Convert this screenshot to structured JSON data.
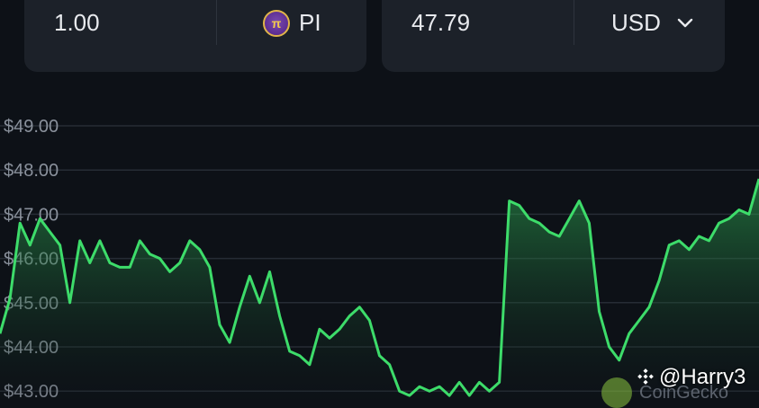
{
  "converter": {
    "from_amount": "1.00",
    "from_token": "PI",
    "to_amount": "47.79",
    "to_currency": "USD"
  },
  "watermark": {
    "author": "@Harry3",
    "source": "CoinGecko"
  },
  "colors": {
    "background": "#0d1117",
    "card": "#1c2129",
    "line": "#3ddc6a"
  },
  "chart_data": {
    "type": "area",
    "title": "",
    "xlabel": "",
    "ylabel": "",
    "ylim": [
      42.9,
      49.4
    ],
    "y_ticks": [
      "$49.00",
      "$48.00",
      "$47.00",
      "$46.00",
      "$45.00",
      "$44.00",
      "$43.00"
    ],
    "grid": true,
    "series": [
      {
        "values": [
          44.3,
          45.1,
          46.8,
          46.3,
          46.9,
          46.6,
          46.3,
          45.0,
          46.4,
          45.9,
          46.4,
          45.9,
          45.8,
          45.8,
          46.4,
          46.1,
          46.0,
          45.7,
          45.9,
          46.4,
          46.2,
          45.8,
          44.5,
          44.1,
          44.9,
          45.6,
          45.0,
          45.7,
          44.7,
          43.9,
          43.8,
          43.6,
          44.4,
          44.2,
          44.4,
          44.7,
          44.9,
          44.6,
          43.8,
          43.6,
          43.0,
          42.9,
          43.1,
          43.0,
          43.1,
          42.9,
          43.2,
          42.9,
          43.2,
          43.0,
          43.2,
          47.3,
          47.2,
          46.9,
          46.8,
          46.6,
          46.5,
          46.9,
          47.3,
          46.8,
          44.8,
          44.0,
          43.7,
          44.3,
          44.6,
          44.9,
          45.5,
          46.3,
          46.4,
          46.2,
          46.5,
          46.4,
          46.8,
          46.9,
          47.1,
          47.0,
          47.8
        ]
      }
    ]
  }
}
